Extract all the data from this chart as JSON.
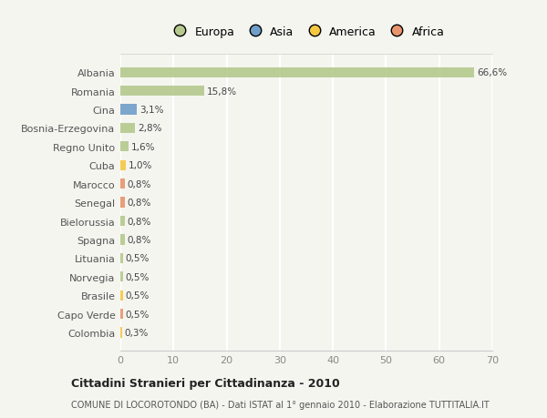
{
  "countries": [
    "Albania",
    "Romania",
    "Cina",
    "Bosnia-Erzegovina",
    "Regno Unito",
    "Cuba",
    "Marocco",
    "Senegal",
    "Bielorussia",
    "Spagna",
    "Lituania",
    "Norvegia",
    "Brasile",
    "Capo Verde",
    "Colombia"
  ],
  "values": [
    66.6,
    15.8,
    3.1,
    2.8,
    1.6,
    1.0,
    0.8,
    0.8,
    0.8,
    0.8,
    0.5,
    0.5,
    0.5,
    0.5,
    0.3
  ],
  "labels": [
    "66,6%",
    "15,8%",
    "3,1%",
    "2,8%",
    "1,6%",
    "1,0%",
    "0,8%",
    "0,8%",
    "0,8%",
    "0,8%",
    "0,5%",
    "0,5%",
    "0,5%",
    "0,5%",
    "0,3%"
  ],
  "colors": [
    "#b5c98e",
    "#b5c98e",
    "#6f9ec9",
    "#b5c98e",
    "#b5c98e",
    "#f5c842",
    "#e8956e",
    "#e8956e",
    "#b5c98e",
    "#b5c98e",
    "#b5c98e",
    "#b5c98e",
    "#f5c842",
    "#e8956e",
    "#f5c842"
  ],
  "legend_labels": [
    "Europa",
    "Asia",
    "America",
    "Africa"
  ],
  "legend_colors": [
    "#b5c98e",
    "#6f9ec9",
    "#f5c842",
    "#e8956e"
  ],
  "title": "Cittadini Stranieri per Cittadinanza - 2010",
  "subtitle": "COMUNE DI LOCOROTONDO (BA) - Dati ISTAT al 1° gennaio 2010 - Elaborazione TUTTITALIA.IT",
  "xlim": [
    0,
    70
  ],
  "xticks": [
    0,
    10,
    20,
    30,
    40,
    50,
    60,
    70
  ],
  "bg_color": "#f5f5f0",
  "grid_color": "#ffffff",
  "bar_height": 0.55
}
